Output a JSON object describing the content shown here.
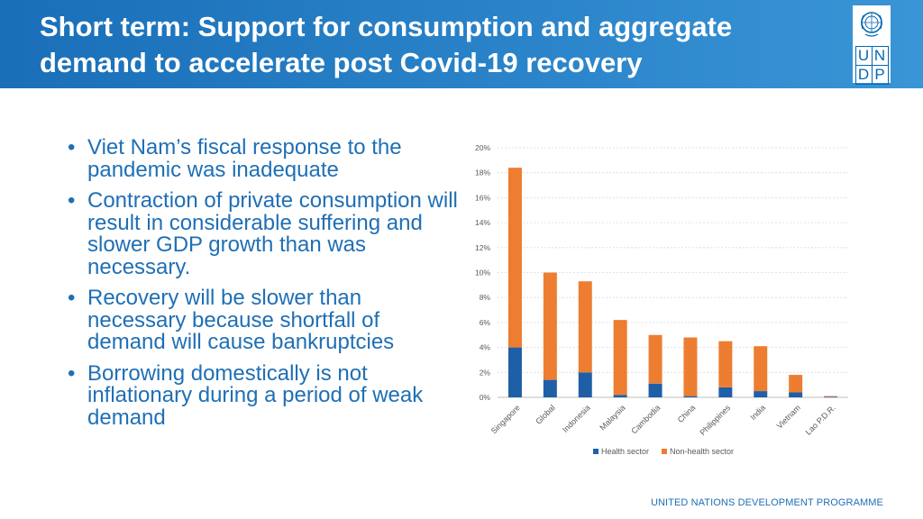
{
  "header": {
    "title": "Short term: Support for consumption and aggregate demand to accelerate post Covid-19 recovery",
    "logo_letters": [
      "U",
      "N",
      "D",
      "P"
    ]
  },
  "bullets": [
    "Viet Nam’s fiscal response to the pandemic was inadequate",
    "Contraction of private consumption will result in considerable suffering and slower GDP growth than was necessary.",
    "Recovery will be slower than necessary because shortfall of demand will cause bankruptcies",
    "Borrowing domestically is not inflationary during a period of weak demand"
  ],
  "footer": "UNITED NATIONS DEVELOPMENT PROGRAMME",
  "colors": {
    "health": "#1f5fa8",
    "non_health": "#ed7d31",
    "text": "#1f6fb5"
  },
  "chart_data": {
    "type": "bar",
    "stacked": true,
    "categories": [
      "Singapore",
      "Global",
      "Indonesia",
      "Malaysia",
      "Cambodia",
      "China",
      "Philippines",
      "India",
      "Vietnam",
      "Lao P.D.R."
    ],
    "series": [
      {
        "name": "Health sector",
        "values": [
          4.0,
          1.4,
          2.0,
          0.2,
          1.1,
          0.1,
          0.8,
          0.5,
          0.4,
          0.05
        ]
      },
      {
        "name": "Non-health sector",
        "values": [
          14.4,
          8.6,
          7.3,
          6.0,
          3.9,
          4.7,
          3.7,
          3.6,
          1.4,
          0.05
        ]
      }
    ],
    "yticks": [
      "0%",
      "2%",
      "4%",
      "6%",
      "8%",
      "10%",
      "12%",
      "14%",
      "16%",
      "18%",
      "20%"
    ],
    "ylim": [
      0,
      20
    ],
    "title": "",
    "xlabel": "",
    "ylabel": "",
    "legend_position": "bottom"
  }
}
